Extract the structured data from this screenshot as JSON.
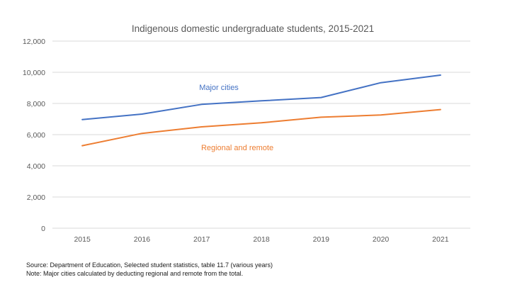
{
  "chart_data": {
    "type": "line",
    "title": "Indigenous domestic undergraduate students, 2015-2021",
    "xlabel": "",
    "ylabel": "",
    "x": [
      "2015",
      "2016",
      "2017",
      "2018",
      "2019",
      "2020",
      "2021"
    ],
    "ylim": [
      0,
      12000
    ],
    "yticks": [
      0,
      2000,
      4000,
      6000,
      8000,
      10000,
      12000
    ],
    "ytick_labels": [
      "0",
      "2,000",
      "4,000",
      "6,000",
      "8,000",
      "10,000",
      "12,000"
    ],
    "grid": true,
    "legend": "inline labels",
    "series": [
      {
        "name": "Major cities",
        "color": "#4472C4",
        "values": [
          6970,
          7320,
          7940,
          8170,
          8380,
          9330,
          9820
        ]
      },
      {
        "name": "Regional and remote",
        "color": "#ED7D31",
        "values": [
          5290,
          6080,
          6500,
          6760,
          7120,
          7260,
          7610
        ]
      }
    ]
  },
  "footnotes": {
    "source": "Source: Department of Education, Selected student statistics, table 11.7 (various years)",
    "note": "Note: Major cities calculated by deducting regional and remote from the total."
  }
}
